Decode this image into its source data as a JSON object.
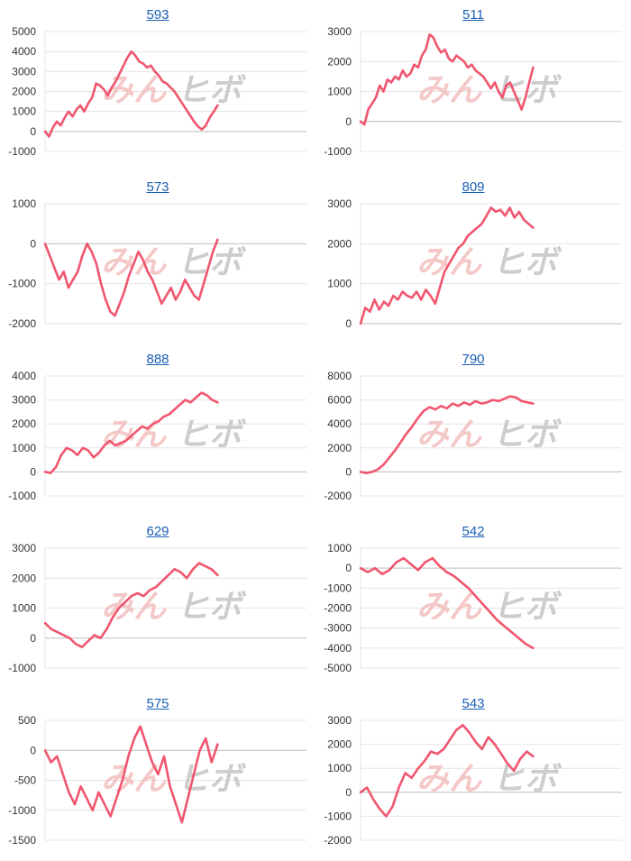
{
  "page": {
    "watermark_left": "みん",
    "watermark_right": "ヒボ",
    "colors": {
      "series": "#f0566f",
      "title": "#1a5fb4",
      "watermark_left": "#f2b6b6",
      "watermark_right": "#c4c4c4",
      "grid": "#e4e4e4",
      "zero": "#bdbdbd"
    }
  },
  "chart_data": [
    {
      "type": "line",
      "title": "593",
      "yticks": [
        -1000,
        0,
        1000,
        2000,
        3000,
        4000,
        5000
      ],
      "ylim": [
        -1000,
        5000
      ],
      "series": [
        {
          "values": [
            0,
            -250,
            200,
            500,
            300,
            700,
            1000,
            750,
            1100,
            1300,
            1000,
            1400,
            1700,
            2400,
            2300,
            2100,
            1800,
            2200,
            2500,
            2900,
            3300,
            3700,
            4000,
            3800,
            3500,
            3400,
            3200,
            3300,
            3000,
            2800,
            2500,
            2400,
            2200,
            2000,
            1700,
            1400,
            1100,
            800,
            500,
            250,
            100,
            300,
            700,
            1000,
            1300
          ]
        }
      ]
    },
    {
      "type": "line",
      "title": "511",
      "yticks": [
        -1000,
        0,
        1000,
        2000,
        3000
      ],
      "ylim": [
        -1000,
        3000
      ],
      "series": [
        {
          "values": [
            0,
            -100,
            400,
            600,
            800,
            1200,
            1000,
            1400,
            1300,
            1500,
            1400,
            1700,
            1500,
            1600,
            1900,
            1800,
            2200,
            2400,
            2900,
            2800,
            2500,
            2300,
            2400,
            2100,
            2000,
            2200,
            2100,
            2000,
            1800,
            1900,
            1700,
            1600,
            1500,
            1300,
            1100,
            1300,
            1000,
            800,
            1200,
            1300,
            1000,
            700,
            400,
            800,
            1300,
            1800
          ]
        }
      ]
    },
    {
      "type": "line",
      "title": "573",
      "yticks": [
        -2000,
        -1000,
        0,
        1000
      ],
      "ylim": [
        -2000,
        1000
      ],
      "series": [
        {
          "values": [
            0,
            -300,
            -600,
            -900,
            -700,
            -1100,
            -900,
            -700,
            -300,
            0,
            -200,
            -500,
            -1000,
            -1400,
            -1700,
            -1800,
            -1500,
            -1200,
            -800,
            -500,
            -200,
            -400,
            -700,
            -900,
            -1200,
            -1500,
            -1300,
            -1100,
            -1400,
            -1200,
            -900,
            -1100,
            -1300,
            -1400,
            -1000,
            -600,
            -200,
            100
          ]
        }
      ]
    },
    {
      "type": "line",
      "title": "809",
      "yticks": [
        0,
        1000,
        2000,
        3000
      ],
      "ylim": [
        0,
        3000
      ],
      "series": [
        {
          "values": [
            0,
            400,
            300,
            600,
            350,
            550,
            450,
            700,
            600,
            800,
            700,
            650,
            800,
            600,
            850,
            700,
            500,
            900,
            1300,
            1500,
            1700,
            1900,
            2000,
            2200,
            2300,
            2400,
            2500,
            2700,
            2900,
            2800,
            2850,
            2700,
            2900,
            2650,
            2800,
            2600,
            2500,
            2400
          ]
        }
      ]
    },
    {
      "type": "line",
      "title": "888",
      "yticks": [
        -1000,
        0,
        1000,
        2000,
        3000,
        4000
      ],
      "ylim": [
        -1000,
        4000
      ],
      "series": [
        {
          "values": [
            0,
            -50,
            200,
            700,
            1000,
            900,
            700,
            1000,
            900,
            600,
            800,
            1100,
            1300,
            1100,
            1200,
            1300,
            1500,
            1700,
            1900,
            1800,
            2000,
            2100,
            2300,
            2400,
            2600,
            2800,
            3000,
            2900,
            3100,
            3300,
            3200,
            3000,
            2900
          ]
        }
      ]
    },
    {
      "type": "line",
      "title": "790",
      "yticks": [
        -2000,
        0,
        2000,
        4000,
        6000,
        8000
      ],
      "ylim": [
        -2000,
        8000
      ],
      "series": [
        {
          "values": [
            0,
            -100,
            0,
            200,
            600,
            1200,
            1800,
            2500,
            3200,
            3800,
            4500,
            5100,
            5400,
            5200,
            5500,
            5300,
            5700,
            5500,
            5800,
            5600,
            5900,
            5700,
            5800,
            6000,
            5900,
            6100,
            6300,
            6200,
            5900,
            5800,
            5700
          ]
        }
      ]
    },
    {
      "type": "line",
      "title": "629",
      "yticks": [
        -1000,
        0,
        1000,
        2000,
        3000
      ],
      "ylim": [
        -1000,
        3000
      ],
      "series": [
        {
          "values": [
            500,
            300,
            200,
            100,
            0,
            -200,
            -300,
            -100,
            100,
            0,
            300,
            700,
            1000,
            1200,
            1400,
            1500,
            1400,
            1600,
            1700,
            1900,
            2100,
            2300,
            2200,
            2000,
            2300,
            2500,
            2400,
            2300,
            2100
          ]
        }
      ]
    },
    {
      "type": "line",
      "title": "542",
      "yticks": [
        -5000,
        -4000,
        -3000,
        -2000,
        -1000,
        0,
        1000
      ],
      "ylim": [
        -5000,
        1000
      ],
      "series": [
        {
          "values": [
            0,
            -200,
            0,
            -300,
            -100,
            300,
            500,
            200,
            -100,
            300,
            500,
            100,
            -200,
            -400,
            -700,
            -1000,
            -1400,
            -1800,
            -2200,
            -2600,
            -2900,
            -3200,
            -3500,
            -3800,
            -4000
          ]
        }
      ]
    },
    {
      "type": "line",
      "title": "575",
      "yticks": [
        -1500,
        -1000,
        -500,
        0,
        500
      ],
      "ylim": [
        -1500,
        500
      ],
      "series": [
        {
          "values": [
            0,
            -200,
            -100,
            -400,
            -700,
            -900,
            -600,
            -800,
            -1000,
            -700,
            -900,
            -1100,
            -800,
            -500,
            -100,
            200,
            400,
            100,
            -200,
            -400,
            -100,
            -600,
            -900,
            -1200,
            -800,
            -400,
            0,
            200,
            -200,
            100
          ]
        }
      ]
    },
    {
      "type": "line",
      "title": "543",
      "yticks": [
        -2000,
        -1000,
        0,
        1000,
        2000,
        3000
      ],
      "ylim": [
        -2000,
        3000
      ],
      "series": [
        {
          "values": [
            0,
            200,
            -300,
            -700,
            -1000,
            -600,
            200,
            800,
            600,
            1000,
            1300,
            1700,
            1600,
            1800,
            2200,
            2600,
            2800,
            2500,
            2100,
            1800,
            2300,
            2000,
            1600,
            1200,
            900,
            1400,
            1700,
            1500
          ]
        }
      ]
    }
  ]
}
